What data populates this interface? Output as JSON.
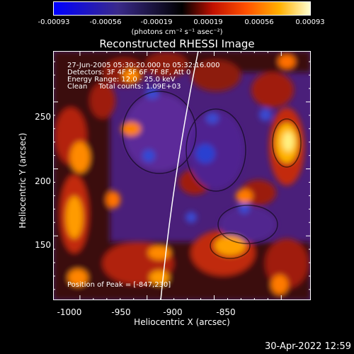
{
  "colorbar": {
    "ticks": [
      "-0.00093",
      "-0.00056",
      "-0.00019",
      "0.00019",
      "0.00056",
      "0.00093"
    ],
    "units": "(photons cm⁻² s⁻¹ asec⁻²)"
  },
  "title": "Reconstructed RHESSI Image",
  "info": {
    "line1": "27-Jun-2005 05:30:20.000 to 05:32:16.000",
    "line2": "Detectors: 3F 4F 5F 6F 7F 8F, Att 0",
    "line3": "Energy Range: 12.0 - 25.0 keV",
    "line4": "Clean     Total counts: 1.09E+03",
    "peak": "Position of Peak = [-847,230]"
  },
  "axes": {
    "xlabel": "Heliocentric X (arcsec)",
    "ylabel": "Heliocentric Y (arcsec)",
    "xticks": [
      "-1000",
      "-950",
      "-900",
      "-850"
    ],
    "yticks": [
      "250",
      "200",
      "150"
    ],
    "xrange": [
      -1020,
      -828
    ],
    "yrange": [
      102,
      288
    ]
  },
  "timestamp": "30-Apr-2022 12:59",
  "colors": {
    "background": "#000000",
    "foreground": "#ffffff"
  }
}
